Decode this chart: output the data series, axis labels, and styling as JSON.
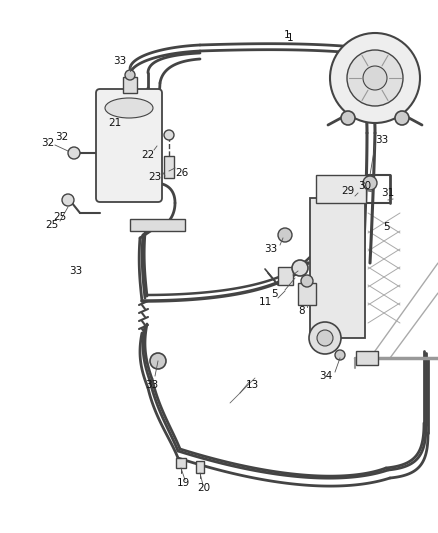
{
  "background_color": "#ffffff",
  "line_color": "#444444",
  "figsize": [
    4.38,
    5.33
  ],
  "dpi": 100
}
